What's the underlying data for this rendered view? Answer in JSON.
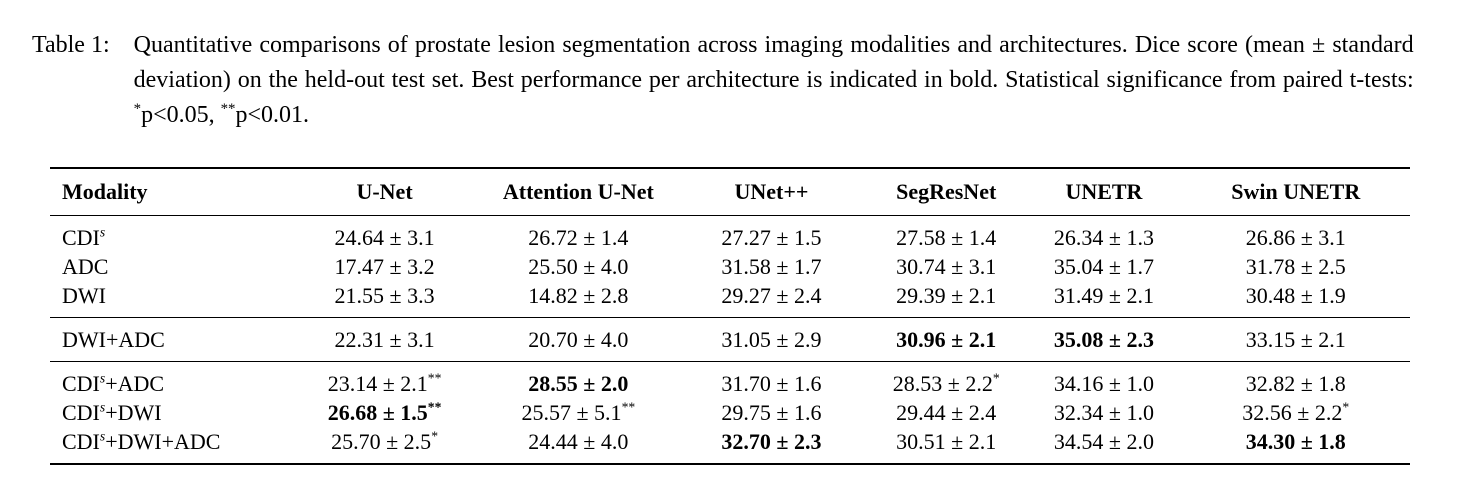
{
  "page": {
    "background": "#ffffff",
    "text_color": "#000000"
  },
  "caption": {
    "label": "Table 1:",
    "segments": [
      {
        "text": "Quantitative comparisons of prostate lesion segmentation across imaging modalities and architectures. Dice score (mean ± standard deviation) on the held-out test set. Best performance per architecture is indicated in bold. Statistical significance from paired t-tests: ",
        "sup": false
      },
      {
        "text": "*",
        "sup": true
      },
      {
        "text": "p<0.05, ",
        "sup": false
      },
      {
        "text": "**",
        "sup": true
      },
      {
        "text": "p<0.01.",
        "sup": false
      }
    ]
  },
  "table": {
    "columns": [
      "Modality",
      "U-Net",
      "Attention U-Net",
      "UNet++",
      "SegResNet",
      "UNETR",
      "Swin UNETR"
    ],
    "groups": [
      {
        "rows": [
          {
            "modality": [
              {
                "text": "CDI",
                "sup": false
              },
              {
                "text": "s",
                "sup": true
              }
            ],
            "cells": [
              {
                "value": "24.64 ± 3.1",
                "bold": false,
                "stars": ""
              },
              {
                "value": "26.72 ± 1.4",
                "bold": false,
                "stars": ""
              },
              {
                "value": "27.27 ± 1.5",
                "bold": false,
                "stars": ""
              },
              {
                "value": "27.58 ± 1.4",
                "bold": false,
                "stars": ""
              },
              {
                "value": "26.34 ± 1.3",
                "bold": false,
                "stars": ""
              },
              {
                "value": "26.86 ± 3.1",
                "bold": false,
                "stars": ""
              }
            ]
          },
          {
            "modality": [
              {
                "text": "ADC",
                "sup": false
              }
            ],
            "cells": [
              {
                "value": "17.47 ± 3.2",
                "bold": false,
                "stars": ""
              },
              {
                "value": "25.50 ± 4.0",
                "bold": false,
                "stars": ""
              },
              {
                "value": "31.58 ± 1.7",
                "bold": false,
                "stars": ""
              },
              {
                "value": "30.74 ± 3.1",
                "bold": false,
                "stars": ""
              },
              {
                "value": "35.04 ± 1.7",
                "bold": false,
                "stars": ""
              },
              {
                "value": "31.78 ± 2.5",
                "bold": false,
                "stars": ""
              }
            ]
          },
          {
            "modality": [
              {
                "text": "DWI",
                "sup": false
              }
            ],
            "cells": [
              {
                "value": "21.55 ± 3.3",
                "bold": false,
                "stars": ""
              },
              {
                "value": "14.82 ± 2.8",
                "bold": false,
                "stars": ""
              },
              {
                "value": "29.27 ± 2.4",
                "bold": false,
                "stars": ""
              },
              {
                "value": "29.39 ± 2.1",
                "bold": false,
                "stars": ""
              },
              {
                "value": "31.49 ± 2.1",
                "bold": false,
                "stars": ""
              },
              {
                "value": "30.48 ± 1.9",
                "bold": false,
                "stars": ""
              }
            ]
          }
        ]
      },
      {
        "rows": [
          {
            "modality": [
              {
                "text": "DWI+ADC",
                "sup": false
              }
            ],
            "cells": [
              {
                "value": "22.31 ± 3.1",
                "bold": false,
                "stars": ""
              },
              {
                "value": "20.70 ± 4.0",
                "bold": false,
                "stars": ""
              },
              {
                "value": "31.05 ± 2.9",
                "bold": false,
                "stars": ""
              },
              {
                "value": "30.96 ± 2.1",
                "bold": true,
                "stars": ""
              },
              {
                "value": "35.08 ± 2.3",
                "bold": true,
                "stars": ""
              },
              {
                "value": "33.15 ± 2.1",
                "bold": false,
                "stars": ""
              }
            ]
          }
        ]
      },
      {
        "rows": [
          {
            "modality": [
              {
                "text": "CDI",
                "sup": false
              },
              {
                "text": "s",
                "sup": true
              },
              {
                "text": "+ADC",
                "sup": false
              }
            ],
            "cells": [
              {
                "value": "23.14 ± 2.1",
                "bold": false,
                "stars": "**"
              },
              {
                "value": "28.55 ± 2.0",
                "bold": true,
                "stars": ""
              },
              {
                "value": "31.70 ± 1.6",
                "bold": false,
                "stars": ""
              },
              {
                "value": "28.53 ± 2.2",
                "bold": false,
                "stars": "*"
              },
              {
                "value": "34.16 ± 1.0",
                "bold": false,
                "stars": ""
              },
              {
                "value": "32.82 ± 1.8",
                "bold": false,
                "stars": ""
              }
            ]
          },
          {
            "modality": [
              {
                "text": "CDI",
                "sup": false
              },
              {
                "text": "s",
                "sup": true
              },
              {
                "text": "+DWI",
                "sup": false
              }
            ],
            "cells": [
              {
                "value": "26.68 ± 1.5",
                "bold": true,
                "stars": "**"
              },
              {
                "value": "25.57 ± 5.1",
                "bold": false,
                "stars": "**"
              },
              {
                "value": "29.75 ± 1.6",
                "bold": false,
                "stars": ""
              },
              {
                "value": "29.44 ± 2.4",
                "bold": false,
                "stars": ""
              },
              {
                "value": "32.34 ± 1.0",
                "bold": false,
                "stars": ""
              },
              {
                "value": "32.56 ± 2.2",
                "bold": false,
                "stars": "*"
              }
            ]
          },
          {
            "modality": [
              {
                "text": "CDI",
                "sup": false
              },
              {
                "text": "s",
                "sup": true
              },
              {
                "text": "+DWI+ADC",
                "sup": false
              }
            ],
            "cells": [
              {
                "value": "25.70 ± 2.5",
                "bold": false,
                "stars": "*"
              },
              {
                "value": "24.44 ± 4.0",
                "bold": false,
                "stars": ""
              },
              {
                "value": "32.70 ± 2.3",
                "bold": true,
                "stars": ""
              },
              {
                "value": "30.51 ± 2.1",
                "bold": false,
                "stars": ""
              },
              {
                "value": "34.54 ± 2.0",
                "bold": false,
                "stars": ""
              },
              {
                "value": "34.30 ± 1.8",
                "bold": true,
                "stars": ""
              }
            ]
          }
        ]
      }
    ]
  }
}
